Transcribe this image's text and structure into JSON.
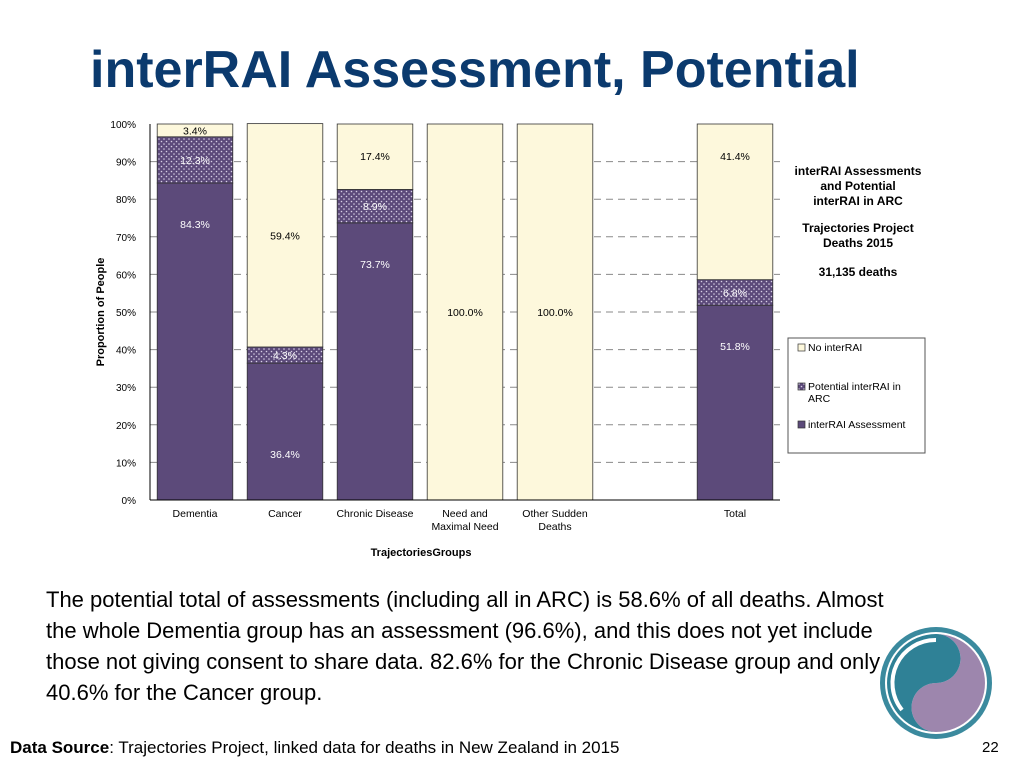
{
  "slide": {
    "title": "interRAI Assessment, Potential",
    "body": "The potential total of assessments (including all in ARC) is 58.6% of all deaths. Almost the whole Dementia group has an assessment (96.6%), and this does not yet include those not giving consent to share data. 82.6% for the Chronic Disease group and only 40.6% for the Cancer group.",
    "source_label": "Data Source",
    "source_text": ": Trajectories Project, linked data for deaths in New Zealand in 2015",
    "page_number": "22"
  },
  "chart_data": {
    "type": "bar",
    "stacked": true,
    "xlabel": "TrajectoriesGroups",
    "ylabel": "Proportion of People",
    "ylim": [
      0,
      100
    ],
    "yticks": [
      0,
      10,
      20,
      30,
      40,
      50,
      60,
      70,
      80,
      90,
      100
    ],
    "ytick_suffix": "%",
    "grid": true,
    "categories": [
      "Dementia",
      "Cancer",
      "Chronic Disease",
      "Need and Maximal Need",
      "Other Sudden Deaths",
      "",
      "Total"
    ],
    "category_lines": [
      [
        "Dementia"
      ],
      [
        "Cancer"
      ],
      [
        "Chronic Disease"
      ],
      [
        "Need and",
        "Maximal Need"
      ],
      [
        "Other Sudden",
        "Deaths"
      ],
      [
        ""
      ],
      [
        "Total"
      ]
    ],
    "series": [
      {
        "name": "interRAI Assessment",
        "color": "#5c4a7a",
        "values": [
          84.3,
          36.4,
          73.7,
          0,
          0,
          null,
          51.8
        ],
        "labels": [
          "84.3%",
          "36.4%",
          "73.7%",
          "",
          "",
          "",
          "51.8%"
        ]
      },
      {
        "name": "Potential interRAI in ARC",
        "color": "#5c4a7a",
        "pattern": "dotted",
        "values": [
          12.3,
          4.3,
          8.9,
          0,
          0,
          null,
          6.8
        ],
        "labels": [
          "12.3%",
          "4.3%",
          "8.9%",
          "",
          "",
          "",
          "6.8%"
        ]
      },
      {
        "name": "No interRAI",
        "color": "#fdf8dc",
        "values": [
          3.4,
          59.4,
          17.4,
          100.0,
          100.0,
          null,
          41.4
        ],
        "labels": [
          "3.4%",
          "59.4%",
          "17.4%",
          "100.0%",
          "100.0%",
          "",
          "41.4%"
        ]
      }
    ],
    "legend": {
      "placement": "right",
      "entries": [
        "No interRAI",
        "Potential interRAI in ARC",
        "interRAI Assessment"
      ],
      "entry_lines": [
        [
          "No interRAI"
        ],
        [
          "Potential interRAI in",
          "ARC"
        ],
        [
          "interRAI Assessment"
        ]
      ]
    },
    "annotation": {
      "heading_lines": [
        "interRAI Assessments",
        "and Potential",
        "interRAI in ARC"
      ],
      "subheading_lines": [
        "Trajectories Project",
        "Deaths 2015"
      ],
      "total": "31,135 deaths"
    }
  }
}
